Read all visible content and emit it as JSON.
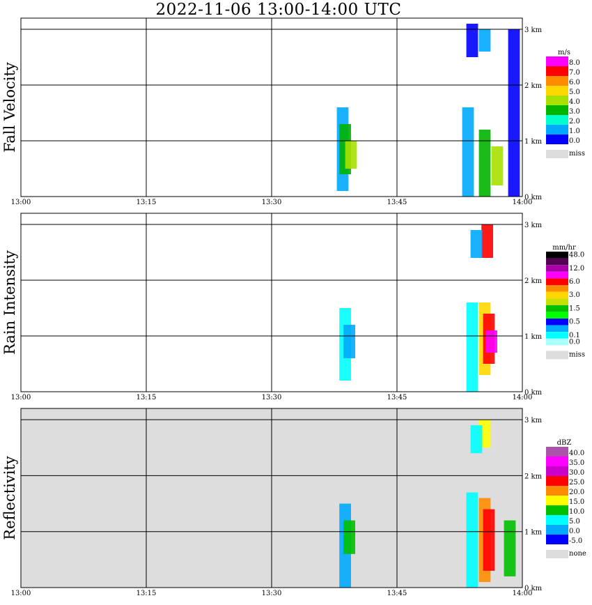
{
  "title": "2022-11-06   13:00-14:00 UTC",
  "chart_data": [
    {
      "type": "heatmap",
      "ylabel": "Fall Velocity",
      "x_ticks": [
        "13:00",
        "13:15",
        "13:30",
        "13:45",
        "14:00"
      ],
      "y_ticks": [
        "0 km",
        "1 km",
        "2 km",
        "3 km"
      ],
      "background": "#ffffff",
      "legend": {
        "unit": "m/s",
        "labels": [
          "8.0",
          "7.0",
          "6.0",
          "5.0",
          "4.0",
          "3.0",
          "2.0",
          "1.0",
          "0.0"
        ],
        "colors": [
          "#ff00ff",
          "#ff0000",
          "#ff8c00",
          "#ffd700",
          "#a8e000",
          "#00b400",
          "#00ffcc",
          "#00aaff",
          "#0000ff"
        ],
        "missing_label": "miss",
        "missing_color": "#dddddd"
      },
      "cells": [
        {
          "time": "13:38.5",
          "km": [
            0.1,
            1.6
          ],
          "color": "#00aaff"
        },
        {
          "time": "13:38.8",
          "km": [
            0.4,
            1.3
          ],
          "color": "#00b400"
        },
        {
          "time": "13:39.5",
          "km": [
            0.5,
            1.0
          ],
          "color": "#a8e000"
        },
        {
          "time": "13:53.5",
          "km": [
            0.0,
            1.6
          ],
          "color": "#00aaff"
        },
        {
          "time": "13:55.5",
          "km": [
            0.0,
            1.2
          ],
          "color": "#00b400"
        },
        {
          "time": "13:57.0",
          "km": [
            0.2,
            0.9
          ],
          "color": "#a8e000"
        },
        {
          "time": "13:59.0",
          "km": [
            0.0,
            3.0
          ],
          "color": "#0000ff"
        },
        {
          "time": "13:54.0",
          "km": [
            2.5,
            3.1
          ],
          "color": "#0000ff"
        },
        {
          "time": "13:55.5",
          "km": [
            2.6,
            3.0
          ],
          "color": "#00aaff"
        }
      ]
    },
    {
      "type": "heatmap",
      "ylabel": "Rain Intensity",
      "x_ticks": [
        "13:00",
        "13:15",
        "13:30",
        "13:45",
        "14:00"
      ],
      "y_ticks": [
        "0 km",
        "1 km",
        "2 km",
        "3 km"
      ],
      "background": "#ffffff",
      "legend": {
        "unit": "mm/hr",
        "labels": [
          "48.0",
          "",
          "12.0",
          "",
          "6.0",
          "",
          "3.0",
          "",
          "1.5",
          "",
          "0.5",
          "",
          "0.1",
          "0.0"
        ],
        "colors": [
          "#000000",
          "#550055",
          "#aa00aa",
          "#ff00ff",
          "#ff0000",
          "#ff8c00",
          "#ffd700",
          "#c8e000",
          "#00c000",
          "#00ff00",
          "#0000ff",
          "#00aaff",
          "#00ffff",
          "#aaffff"
        ],
        "missing_label": "miss",
        "missing_color": "#dddddd"
      },
      "cells": [
        {
          "time": "13:38.8",
          "km": [
            0.2,
            1.5
          ],
          "color": "#00ffff"
        },
        {
          "time": "13:39.3",
          "km": [
            0.6,
            1.2
          ],
          "color": "#00aaff"
        },
        {
          "time": "13:54.0",
          "km": [
            0.0,
            1.6
          ],
          "color": "#00ffff"
        },
        {
          "time": "13:55.5",
          "km": [
            0.3,
            1.6
          ],
          "color": "#ffd700"
        },
        {
          "time": "13:56.0",
          "km": [
            0.5,
            1.4
          ],
          "color": "#ff0000"
        },
        {
          "time": "13:56.3",
          "km": [
            0.7,
            1.1
          ],
          "color": "#ff00ff"
        },
        {
          "time": "13:55.8",
          "km": [
            2.4,
            3.0
          ],
          "color": "#ff0000"
        },
        {
          "time": "13:54.5",
          "km": [
            2.4,
            2.9
          ],
          "color": "#00aaff"
        }
      ]
    },
    {
      "type": "heatmap",
      "ylabel": "Reflectivity",
      "x_ticks": [
        "13:00",
        "13:15",
        "13:30",
        "13:45",
        "14:00"
      ],
      "y_ticks": [
        "0 km",
        "1 km",
        "2 km",
        "3 km"
      ],
      "background": "#dddddd",
      "legend": {
        "unit": "dBZ",
        "labels": [
          "40.0",
          "35.0",
          "30.0",
          "25.0",
          "20.0",
          "15.0",
          "10.0",
          "5.0",
          "0.0",
          "-5.0"
        ],
        "colors": [
          "#aa55aa",
          "#ff00ff",
          "#cc00cc",
          "#ff0000",
          "#ff8c00",
          "#ffff00",
          "#00c000",
          "#00ffff",
          "#00aaff",
          "#0000ff"
        ],
        "missing_label": "none",
        "missing_color": "#dddddd"
      },
      "cells": [
        {
          "time": "13:38.8",
          "km": [
            0.0,
            1.5
          ],
          "color": "#00aaff"
        },
        {
          "time": "13:39.3",
          "km": [
            0.6,
            1.2
          ],
          "color": "#00c000"
        },
        {
          "time": "13:54.0",
          "km": [
            0.0,
            1.7
          ],
          "color": "#00ffff"
        },
        {
          "time": "13:55.5",
          "km": [
            0.1,
            1.6
          ],
          "color": "#ff8c00"
        },
        {
          "time": "13:56.0",
          "km": [
            0.3,
            1.4
          ],
          "color": "#ff0000"
        },
        {
          "time": "13:58.5",
          "km": [
            0.2,
            1.2
          ],
          "color": "#00c000"
        },
        {
          "time": "13:55.5",
          "km": [
            2.5,
            3.0
          ],
          "color": "#ffff00"
        },
        {
          "time": "13:54.5",
          "km": [
            2.4,
            2.9
          ],
          "color": "#00ffff"
        }
      ]
    }
  ]
}
